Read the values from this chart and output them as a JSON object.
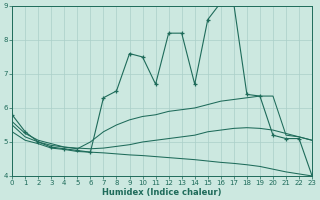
{
  "xlabel": "Humidex (Indice chaleur)",
  "xlim": [
    0,
    23
  ],
  "ylim": [
    4,
    9
  ],
  "yticks": [
    4,
    5,
    6,
    7,
    8,
    9
  ],
  "xticks": [
    0,
    1,
    2,
    3,
    4,
    5,
    6,
    7,
    8,
    9,
    10,
    11,
    12,
    13,
    14,
    15,
    16,
    17,
    18,
    19,
    20,
    21,
    22,
    23
  ],
  "bg_color": "#cce8e0",
  "grid_color": "#aacfc8",
  "line_color": "#1e6b5a",
  "series": {
    "line1_markers": {
      "x": [
        0,
        1,
        2,
        3,
        4,
        5,
        6,
        7,
        8,
        9,
        10,
        11,
        12,
        13,
        14,
        15,
        16,
        17,
        18,
        19,
        20,
        21,
        22,
        23
      ],
      "y": [
        5.8,
        5.3,
        5.0,
        4.85,
        4.8,
        4.75,
        4.7,
        6.3,
        6.5,
        7.6,
        7.5,
        6.7,
        8.2,
        8.2,
        6.7,
        8.6,
        9.1,
        9.05,
        6.4,
        6.35,
        5.2,
        5.1,
        5.1,
        4.0
      ]
    },
    "line2_upper": {
      "x": [
        0,
        1,
        2,
        3,
        4,
        5,
        6,
        7,
        8,
        9,
        10,
        11,
        12,
        13,
        14,
        15,
        16,
        17,
        18,
        19,
        20,
        21,
        22,
        23
      ],
      "y": [
        5.6,
        5.25,
        5.05,
        4.95,
        4.85,
        4.8,
        5.0,
        5.3,
        5.5,
        5.65,
        5.75,
        5.8,
        5.9,
        5.95,
        6.0,
        6.1,
        6.2,
        6.25,
        6.3,
        6.35,
        6.35,
        5.2,
        5.15,
        5.05
      ]
    },
    "line3_mid": {
      "x": [
        0,
        1,
        2,
        3,
        4,
        5,
        6,
        7,
        8,
        9,
        10,
        11,
        12,
        13,
        14,
        15,
        16,
        17,
        18,
        19,
        20,
        21,
        22,
        23
      ],
      "y": [
        5.5,
        5.15,
        5.0,
        4.9,
        4.85,
        4.82,
        4.8,
        4.82,
        4.87,
        4.92,
        5.0,
        5.05,
        5.1,
        5.15,
        5.2,
        5.3,
        5.35,
        5.4,
        5.42,
        5.4,
        5.35,
        5.25,
        5.15,
        5.05
      ]
    },
    "line4_lower": {
      "x": [
        0,
        1,
        2,
        3,
        4,
        5,
        6,
        7,
        8,
        9,
        10,
        11,
        12,
        13,
        14,
        15,
        16,
        17,
        18,
        19,
        20,
        21,
        22,
        23
      ],
      "y": [
        5.3,
        5.05,
        4.95,
        4.82,
        4.78,
        4.72,
        4.7,
        4.68,
        4.65,
        4.62,
        4.6,
        4.57,
        4.54,
        4.51,
        4.48,
        4.44,
        4.4,
        4.37,
        4.33,
        4.28,
        4.2,
        4.12,
        4.06,
        4.0
      ]
    }
  }
}
